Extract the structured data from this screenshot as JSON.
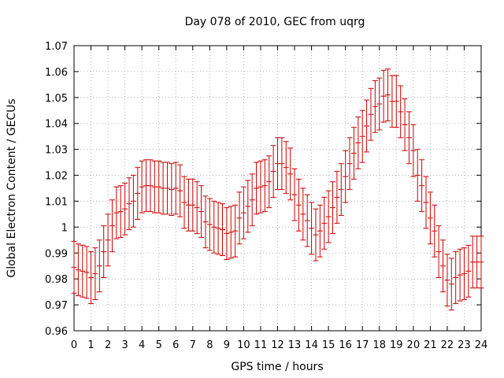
{
  "chart_data": {
    "type": "scatter",
    "title": "Day 078 of 2010, GEC from uqrg",
    "xlabel": "GPS time / hours",
    "ylabel": "Global Electron Content / GECUs",
    "xlim": [
      0,
      24
    ],
    "ylim": [
      0.96,
      1.07
    ],
    "grid": true,
    "legend": "none",
    "color": "#cc0000",
    "x_ticks": [
      "0",
      "1",
      "2",
      "3",
      "4",
      "5",
      "6",
      "7",
      "8",
      "9",
      "10",
      "11",
      "12",
      "13",
      "14",
      "15",
      "16",
      "17",
      "18",
      "19",
      "20",
      "21",
      "22",
      "23",
      "24"
    ],
    "y_ticks": [
      "0.96",
      "0.97",
      "0.98",
      "0.99",
      "1",
      "1.01",
      "1.02",
      "1.03",
      "1.04",
      "1.05",
      "1.06",
      "1.07"
    ],
    "series": [
      {
        "error": 0.01,
        "x": [
          0,
          0.25,
          0.5,
          0.75,
          1,
          1.25,
          1.5,
          1.75,
          2,
          2.25,
          2.5,
          2.75,
          3,
          3.25,
          3.5,
          3.75,
          4,
          4.25,
          4.5,
          4.75,
          5,
          5.25,
          5.5,
          5.75,
          6,
          6.25,
          6.5,
          6.75,
          7,
          7.25,
          7.5,
          7.75,
          8,
          8.25,
          8.5,
          8.75,
          9,
          9.25,
          9.5,
          9.75,
          10,
          10.25,
          10.5,
          10.75,
          11,
          11.25,
          11.5,
          11.75,
          12,
          12.25,
          12.5,
          12.75,
          13,
          13.25,
          13.5,
          13.75,
          14,
          14.25,
          14.5,
          14.75,
          15,
          15.25,
          15.5,
          15.75,
          16,
          16.25,
          16.5,
          16.75,
          17,
          17.25,
          17.5,
          17.75,
          18,
          18.25,
          18.5,
          18.75,
          19,
          19.25,
          19.5,
          19.75,
          20,
          20.25,
          20.5,
          20.75,
          21,
          21.25,
          21.5,
          21.75,
          22,
          22.25,
          22.5,
          22.75,
          23,
          23.25,
          23.5,
          23.75,
          24
        ],
        "y": [
          0.9845,
          0.9835,
          0.983,
          0.9825,
          0.9805,
          0.982,
          0.985,
          0.9905,
          0.995,
          1.0005,
          1.0055,
          1.006,
          1.007,
          1.009,
          1.01,
          1.013,
          1.0155,
          1.016,
          1.016,
          1.0155,
          1.0155,
          1.015,
          1.015,
          1.0145,
          1.015,
          1.014,
          1.0095,
          1.0085,
          1.0085,
          1.0075,
          1.006,
          1.002,
          1.001,
          1.0,
          0.9995,
          0.999,
          0.9975,
          0.998,
          0.9985,
          1.0035,
          1.0055,
          1.008,
          1.0105,
          1.015,
          1.0155,
          1.016,
          1.0175,
          1.0215,
          1.0245,
          1.0245,
          1.023,
          1.0205,
          1.0125,
          1.0085,
          1.005,
          1.0025,
          0.9995,
          0.997,
          0.9985,
          1.0015,
          1.004,
          1.0075,
          1.0115,
          1.0145,
          1.0195,
          1.0245,
          1.0285,
          1.0325,
          1.035,
          1.039,
          1.0435,
          1.0465,
          1.0475,
          1.0505,
          1.051,
          1.0485,
          1.0485,
          1.0445,
          1.0395,
          1.0345,
          1.0295,
          1.02,
          1.016,
          1.0095,
          1.0035,
          0.9985,
          0.9905,
          0.985,
          0.9795,
          0.978,
          0.9805,
          0.9815,
          0.982,
          0.983,
          0.9865,
          0.9865,
          0.9865
        ]
      }
    ]
  }
}
